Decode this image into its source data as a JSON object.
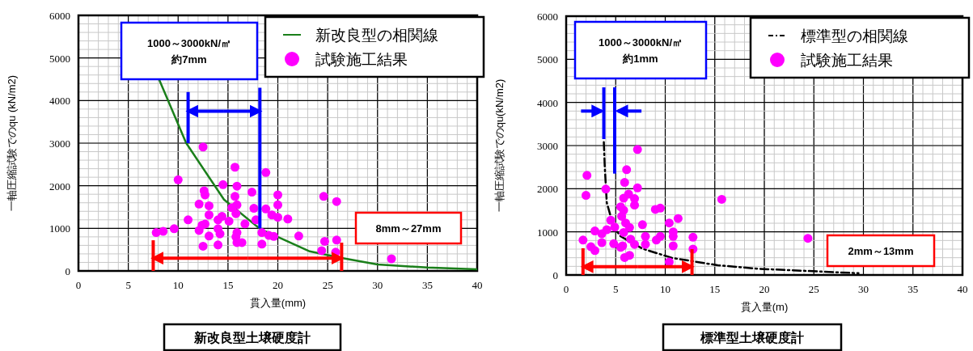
{
  "chart_data": [
    {
      "type": "scatter",
      "xlabel": "貫入量(mm)",
      "ylabel": "一軸圧縮試験でのqu (kN/m2)",
      "xlim": [
        0,
        40
      ],
      "ylim": [
        0,
        6000
      ],
      "xticks": [
        0,
        5,
        10,
        15,
        20,
        25,
        30,
        35,
        40
      ],
      "yticks": [
        0,
        1000,
        2000,
        3000,
        4000,
        5000,
        6000
      ],
      "grid": true,
      "legend": "top right",
      "annotations": [
        "1000～3000kN/㎡",
        "約7mm",
        "8mm～27mm",
        "新改良型土壌硬度計"
      ],
      "series": [
        {
          "name": "新改良型の相関線",
          "type": "line",
          "color": "#1a7f1a",
          "line_style": "solid",
          "x": [
            8.1,
            10.8,
            14.6,
            18.2,
            23.2,
            26.2,
            30,
            35,
            40
          ],
          "values": [
            4490,
            3005,
            1675,
            990,
            460,
            315,
            150,
            80,
            40
          ]
        },
        {
          "name": "試験施工結果",
          "type": "scatter",
          "color": "#ff00ff",
          "marker": "circle",
          "x": [
            12.5,
            15.7,
            18.8,
            10.0,
            14.5,
            15.9,
            12.6,
            17.4,
            20.0,
            12.7,
            15.7,
            24.6,
            25.9,
            12.1,
            13.1,
            15.9,
            20.0,
            17.6,
            18.8,
            15.4,
            13.1,
            15.8,
            19.4,
            20.0,
            21.0,
            14.4,
            14.0,
            15.1,
            11.0,
            16.7,
            17.8,
            12.4,
            12.7,
            12.1,
            14.0,
            9.6,
            8.5,
            7.8,
            15.9,
            14.2,
            18.4,
            19.1,
            22.1,
            13.1,
            15.8,
            19.6,
            15.9,
            16.4,
            18.4,
            14.0,
            12.5,
            24.7,
            25.9,
            25.8,
            24.4,
            31.4
          ],
          "values": [
            2910,
            2435,
            2310,
            2140,
            2025,
            1990,
            1880,
            1850,
            1785,
            1785,
            1750,
            1750,
            1630,
            1570,
            1530,
            1550,
            1550,
            1470,
            1455,
            1485,
            1315,
            1345,
            1315,
            1260,
            1220,
            1280,
            1200,
            1170,
            1200,
            1105,
            1200,
            1075,
            1100,
            950,
            990,
            990,
            930,
            900,
            900,
            870,
            900,
            835,
            820,
            820,
            800,
            810,
            665,
            665,
            630,
            610,
            580,
            695,
            725,
            440,
            475,
            285
          ]
        },
        {
          "type": "line",
          "color": "#0000ff",
          "x": [
            11,
            11
          ],
          "values": [
            4200,
            3000
          ]
        },
        {
          "type": "line",
          "color": "#0000ff",
          "x": [
            18.2,
            18.2
          ],
          "values": [
            4300,
            1000
          ]
        },
        {
          "type": "line",
          "color": "#0000ff",
          "x": [
            14.6,
            11
          ],
          "values": [
            3750,
            3750
          ]
        },
        {
          "type": "line",
          "color": "#0000ff",
          "x": [
            14.6,
            18.2
          ],
          "values": [
            3750,
            3750
          ]
        },
        {
          "type": "line",
          "color": "#ff0000",
          "x": [
            7.5,
            7.5
          ],
          "values": [
            720,
            0
          ]
        },
        {
          "type": "line",
          "color": "#ff0000",
          "x": [
            26.4,
            26.4
          ],
          "values": [
            665,
            0
          ]
        },
        {
          "type": "line",
          "color": "#ff0000",
          "x": [
            17,
            7.5
          ],
          "values": [
            300,
            300
          ]
        },
        {
          "type": "line",
          "color": "#ff0000",
          "x": [
            17,
            26.4
          ],
          "values": [
            300,
            300
          ]
        }
      ]
    },
    {
      "type": "scatter",
      "xlabel": "貫入量(m)",
      "ylabel": "一軸圧縮試験でのqu(kN/m2)",
      "xlim": [
        0,
        40
      ],
      "ylim": [
        0,
        6000
      ],
      "xticks": [
        0,
        5,
        10,
        15,
        20,
        25,
        30,
        35,
        40
      ],
      "yticks": [
        0,
        1000,
        2000,
        3000,
        4000,
        5000,
        6000
      ],
      "grid": true,
      "legend": "top right",
      "annotations": [
        "1000～3000kN/㎡",
        "約1mm",
        "2mm～13mm",
        "標準型土壌硬度計"
      ],
      "series": [
        {
          "name": "標準型の相関線",
          "type": "line",
          "color": "#000000",
          "line_style": "dashdot",
          "x": [
            3.8,
            3.9,
            4.1,
            4.8,
            5.5,
            7.7,
            10.7,
            15.3,
            19.3,
            29.5
          ],
          "values": [
            3080,
            2490,
            1675,
            1110,
            895,
            610,
            395,
            225,
            145,
            40
          ]
        },
        {
          "name": "試験施工結果",
          "type": "scatter",
          "color": "#ff00ff",
          "marker": "circle",
          "x": [
            7.2,
            6.1,
            2.1,
            5.9,
            7.2,
            4.0,
            2.0,
            6.3,
            5.8,
            6.9,
            6.9,
            15.7,
            5.5,
            9.0,
            9.5,
            5.8,
            11.3,
            4.5,
            5.6,
            6.0,
            7.7,
            10.4,
            6.4,
            4.9,
            2.9,
            4.1,
            3.6,
            5.8,
            10.8,
            10.8,
            8.0,
            9.5,
            12.8,
            1.7,
            6.5,
            9.1,
            3.6,
            4.8,
            5.7,
            2.5,
            5.5,
            8.0,
            6.9,
            10.8,
            2.9,
            12.8,
            6.4,
            5.9,
            10.4,
            24.4
          ],
          "values": [
            2910,
            2440,
            2310,
            2145,
            2020,
            1990,
            1845,
            1875,
            1780,
            1770,
            1620,
            1755,
            1580,
            1520,
            1550,
            1500,
            1310,
            1270,
            1360,
            1205,
            1165,
            1205,
            1100,
            1110,
            1020,
            1050,
            955,
            985,
            1000,
            895,
            895,
            895,
            875,
            810,
            830,
            810,
            750,
            725,
            675,
            655,
            640,
            710,
            710,
            675,
            565,
            600,
            455,
            405,
            300,
            850
          ]
        },
        {
          "type": "line",
          "color": "#0000ff",
          "x": [
            3.8,
            3.8
          ],
          "values": [
            4350,
            3150
          ]
        },
        {
          "type": "line",
          "color": "#0000ff",
          "x": [
            4.9,
            4.9
          ],
          "values": [
            4350,
            2350
          ]
        },
        {
          "type": "line",
          "color": "#0000ff",
          "x": [
            1.5,
            3.6
          ],
          "values": [
            3800,
            3800
          ]
        },
        {
          "type": "line",
          "color": "#0000ff",
          "x": [
            7.6,
            5.2
          ],
          "values": [
            3800,
            3800
          ]
        },
        {
          "type": "line",
          "color": "#ff0000",
          "x": [
            1.7,
            1.7
          ],
          "values": [
            620,
            0
          ]
        },
        {
          "type": "line",
          "color": "#ff0000",
          "x": [
            12.7,
            12.7
          ],
          "values": [
            600,
            0
          ]
        },
        {
          "type": "line",
          "color": "#ff0000",
          "x": [
            7.2,
            1.7
          ],
          "values": [
            190,
            190
          ]
        },
        {
          "type": "line",
          "color": "#ff0000",
          "x": [
            7.2,
            12.7
          ],
          "values": [
            190,
            190
          ]
        }
      ]
    }
  ]
}
